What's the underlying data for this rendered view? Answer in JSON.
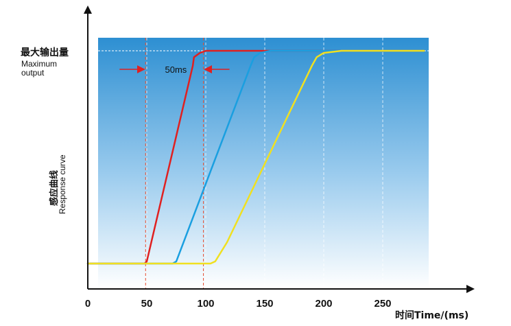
{
  "chart_data": {
    "type": "line",
    "title": "",
    "y_top_label_zh": "最大输出量",
    "y_top_label_en": "Maximum output",
    "ylabel_zh": "感应曲线",
    "ylabel_en": "Response curve",
    "xlabel": "时间Time/(ms)",
    "xlim": [
      0,
      285
    ],
    "ylim": [
      0,
      1.1
    ],
    "x_ticks": [
      "0",
      "50",
      "100",
      "150",
      "200",
      "250"
    ],
    "x_tick_values": [
      0,
      50,
      100,
      150,
      200,
      250
    ],
    "grid": true,
    "annotation": {
      "text": "50ms",
      "x_start": 49,
      "x_end": 98
    },
    "max_level": 1.0,
    "series": [
      {
        "color": "#e02020",
        "x": [
          0,
          48,
          50,
          89,
          90,
          95,
          100,
          110,
          285
        ],
        "y": [
          0,
          0,
          0.01,
          0.93,
          0.97,
          0.99,
          1.0,
          1.0,
          1.0
        ]
      },
      {
        "color": "#1a9fe0",
        "x": [
          0,
          72,
          75,
          138,
          141,
          146,
          155,
          170,
          285
        ],
        "y": [
          0,
          0,
          0.01,
          0.93,
          0.97,
          0.99,
          1.0,
          1.0,
          1.0
        ]
      },
      {
        "color": "#f0e020",
        "x": [
          0,
          104,
          108,
          118,
          190,
          194,
          200,
          215,
          285
        ],
        "y": [
          0,
          0,
          0.01,
          0.1,
          0.93,
          0.97,
          0.99,
          1.0,
          1.0
        ]
      }
    ]
  }
}
